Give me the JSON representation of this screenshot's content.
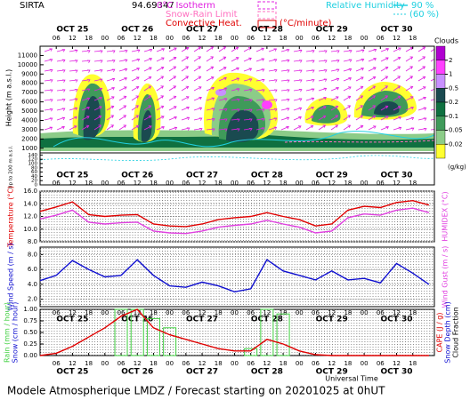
{
  "header": {
    "site": "SIRTA",
    "code": "94.69347",
    "isotherm": "0°C Isotherm",
    "snow_rain": "Snow-Rain Limit",
    "convective": "Convective Heat.",
    "convective_unit": "(°C/minute)",
    "rh": "Relative Humidity",
    "rh_high": "90 %",
    "rh_low": "(60 %)"
  },
  "time_axis": {
    "xlim": [
      0,
      146
    ],
    "label": "Universal Time",
    "day_ticks": [
      {
        "value": 12,
        "label": "OCT 25"
      },
      {
        "value": 36,
        "label": "OCT 26"
      },
      {
        "value": 60,
        "label": "OCT 27"
      },
      {
        "value": 84,
        "label": "OCT 28"
      },
      {
        "value": 108,
        "label": "OCT 29"
      },
      {
        "value": 132,
        "label": "OCT 30"
      }
    ],
    "hour_ticks": [
      {
        "value": 6,
        "label": "06"
      },
      {
        "value": 12,
        "label": "12"
      },
      {
        "value": 18,
        "label": "18"
      },
      {
        "value": 24,
        "label": "00"
      },
      {
        "value": 30,
        "label": "06"
      },
      {
        "value": 36,
        "label": "12"
      },
      {
        "value": 42,
        "label": "18"
      },
      {
        "value": 48,
        "label": "00"
      },
      {
        "value": 54,
        "label": "06"
      },
      {
        "value": 60,
        "label": "12"
      },
      {
        "value": 66,
        "label": "18"
      },
      {
        "value": 72,
        "label": "00"
      },
      {
        "value": 78,
        "label": "06"
      },
      {
        "value": 84,
        "label": "12"
      },
      {
        "value": 90,
        "label": "18"
      },
      {
        "value": 96,
        "label": "00"
      },
      {
        "value": 102,
        "label": "06"
      },
      {
        "value": 108,
        "label": "12"
      },
      {
        "value": 114,
        "label": "18"
      },
      {
        "value": 120,
        "label": "00"
      },
      {
        "value": 126,
        "label": "06"
      },
      {
        "value": 132,
        "label": "12"
      },
      {
        "value": 138,
        "label": "18"
      }
    ]
  },
  "chart_data": [
    {
      "type": "contour",
      "y_label": "Height (m a.s.l.)",
      "y_label_low": "Up to 200 m a.s.l.",
      "ylim": [
        500,
        12000
      ],
      "yticks": [
        1000,
        2000,
        3000,
        4000,
        5000,
        6000,
        7000,
        8000,
        9000,
        10000,
        11000
      ],
      "low_ylim": [
        0,
        150
      ],
      "low_yticks": [
        0,
        20,
        40,
        60,
        80,
        100,
        120,
        140
      ],
      "colorbar": {
        "title": "Clouds",
        "unit": "(g/kg)",
        "colors": [
          "#b000d0",
          "#ff40ff",
          "#c890ff",
          "#1a4a50",
          "#0f7040",
          "#3f9a5a",
          "#8ccc88",
          "#ffff30"
        ],
        "levels": [
          2,
          1,
          0.5,
          0.2,
          0.1,
          0.05,
          0.02
        ]
      }
    },
    {
      "type": "line",
      "ylim": [
        8,
        16
      ],
      "yticks": [
        {
          "value": 8,
          "label": "8.0"
        },
        {
          "value": 10,
          "label": "10.0"
        },
        {
          "value": 12,
          "label": "12.0"
        },
        {
          "value": 14,
          "label": "14.0"
        },
        {
          "value": 16,
          "label": "16.0"
        }
      ],
      "grid": true,
      "x": [
        0,
        6,
        12,
        18,
        24,
        30,
        36,
        42,
        48,
        54,
        60,
        66,
        72,
        78,
        84,
        90,
        96,
        102,
        108,
        114,
        120,
        126,
        132,
        138,
        144
      ],
      "series": [
        {
          "name": "Temperature (°C)",
          "color": "#e00000",
          "side": "left",
          "values": [
            12.8,
            13.5,
            14.3,
            12.3,
            12.0,
            12.2,
            12.3,
            10.8,
            10.5,
            10.4,
            10.8,
            11.5,
            11.8,
            12.0,
            12.6,
            12.0,
            11.5,
            10.5,
            10.8,
            13.0,
            13.6,
            13.4,
            14.2,
            14.5,
            13.8
          ]
        },
        {
          "name": "HUMIDEX (°C)",
          "color": "#e040e0",
          "side": "right",
          "values": [
            11.6,
            12.2,
            13.0,
            11.1,
            10.8,
            11.0,
            11.1,
            9.7,
            9.4,
            9.3,
            9.7,
            10.3,
            10.6,
            10.8,
            11.4,
            10.8,
            10.3,
            9.4,
            9.7,
            11.8,
            12.4,
            12.2,
            13.0,
            13.3,
            12.6
          ]
        }
      ]
    },
    {
      "type": "line",
      "ylim": [
        1,
        9
      ],
      "yticks": [
        {
          "value": 2,
          "label": "2.0"
        },
        {
          "value": 4,
          "label": "4.0"
        },
        {
          "value": 6,
          "label": "6.0"
        },
        {
          "value": 8,
          "label": "8.0"
        }
      ],
      "grid": true,
      "right_label": "Wind Gust (m / s)",
      "x": [
        0,
        6,
        12,
        18,
        24,
        30,
        36,
        42,
        48,
        54,
        60,
        66,
        72,
        78,
        84,
        90,
        96,
        102,
        108,
        114,
        120,
        126,
        132,
        138,
        144
      ],
      "series": [
        {
          "name": "Wind Speed (m / s)",
          "color": "#1010d0",
          "side": "left",
          "values": [
            4.5,
            5.2,
            7.2,
            6.0,
            5.0,
            5.2,
            7.3,
            5.2,
            3.8,
            3.6,
            4.3,
            3.8,
            3.0,
            3.4,
            7.3,
            5.8,
            5.2,
            4.6,
            5.8,
            4.6,
            4.8,
            4.2,
            6.8,
            5.5,
            4.0
          ]
        }
      ]
    },
    {
      "type": "bar",
      "ylim": [
        0,
        1
      ],
      "yticks": [
        {
          "value": 0,
          "label": "0.00"
        },
        {
          "value": 0.25,
          "label": "0.25"
        },
        {
          "value": 0.5,
          "label": "0.50"
        },
        {
          "value": 0.75,
          "label": "0.75"
        },
        {
          "value": 1,
          "label": "1.00"
        }
      ],
      "y2lim": [
        0,
        1
      ],
      "left_label2": "Snow (cm / hour)",
      "right_label2": "Snow Depth (cm)",
      "right_label3": "Cloud Fraction",
      "x": [
        0,
        6,
        12,
        18,
        24,
        30,
        36,
        42,
        48,
        54,
        60,
        66,
        72,
        78,
        84,
        90,
        96,
        102,
        108,
        114,
        120,
        126,
        132,
        138,
        144
      ],
      "series": [
        {
          "name": "Rain (mm / hour)",
          "color": "#40d040",
          "side": "left",
          "values": [
            0,
            0,
            0,
            0,
            0,
            1.0,
            1.0,
            0.8,
            0.6,
            0,
            0,
            0,
            0,
            0.15,
            1.0,
            0.9,
            0,
            0,
            0,
            0,
            0,
            0,
            0,
            0,
            0
          ]
        },
        {
          "name": "CAPE (J / g)",
          "color": "#e00000",
          "side": "right",
          "type": "line",
          "axis": "y2",
          "values": [
            0,
            0.05,
            0.2,
            0.4,
            0.6,
            0.85,
            1.0,
            0.6,
            0.45,
            0.35,
            0.25,
            0.15,
            0.1,
            0.1,
            0.35,
            0.25,
            0.1,
            0.02,
            0,
            0,
            0,
            0,
            0,
            0,
            0
          ]
        }
      ]
    }
  ],
  "footer": "Modele Atmospherique LMDZ / Forecast starting on 20201025 at 0hUT"
}
